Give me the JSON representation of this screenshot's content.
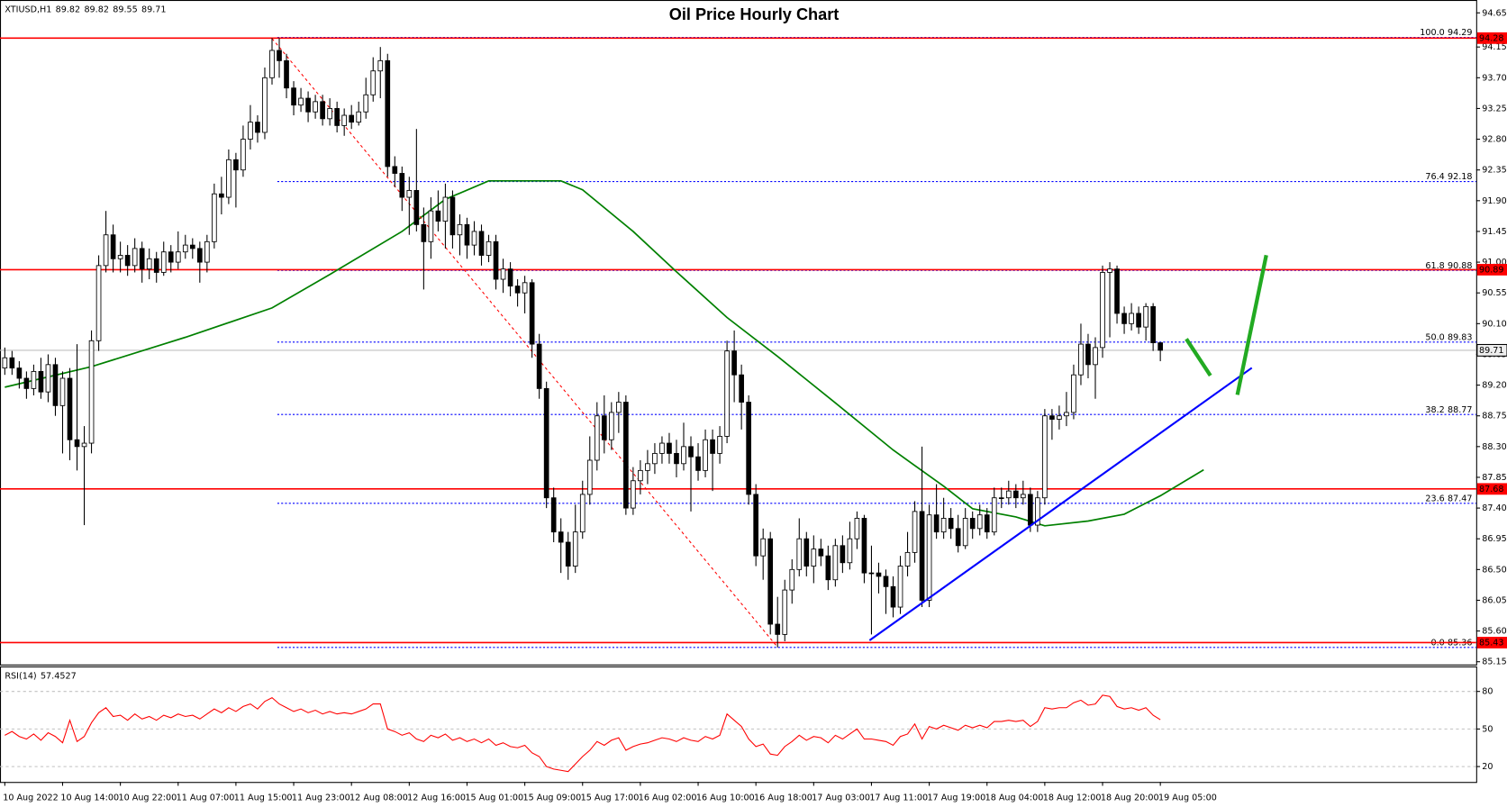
{
  "chart_data": {
    "type": "candlestick",
    "title": "Oil Price Hourly Chart",
    "symbol": "XTIUSD,H1",
    "up_color": "#ffffff",
    "down_color": "#000000",
    "open": [
      89.45,
      89.6,
      89.45,
      89.3,
      89.15,
      89.4,
      89.1,
      89.5,
      88.9,
      89.3,
      88.4,
      88.3,
      88.35,
      89.85,
      90.95,
      91.4,
      91.05,
      91.1,
      90.95,
      91.2,
      90.9,
      91.05,
      90.85,
      91.15,
      91.0,
      91.15,
      91.25,
      91.2,
      91.0,
      91.3,
      92.0,
      91.95,
      92.5,
      92.35,
      92.8,
      93.05,
      92.9,
      93.7,
      94.1,
      93.95,
      93.55,
      93.3,
      93.4,
      93.2,
      93.35,
      93.1,
      93.25,
      93.0,
      93.15,
      93.05,
      93.2,
      93.45,
      93.8,
      93.95,
      92.4,
      92.3,
      91.95,
      92.05,
      91.55,
      91.3,
      91.75,
      91.6,
      91.95,
      91.4,
      91.55,
      91.25,
      91.45,
      91.1,
      91.3,
      90.75,
      90.9,
      90.65,
      90.55,
      90.7,
      89.8,
      89.15,
      87.55,
      87.05,
      86.9,
      86.55,
      87.05,
      87.6,
      88.1,
      88.75,
      88.4,
      88.8,
      88.95,
      87.4,
      87.8,
      87.95,
      88.05,
      88.2,
      88.35,
      88.2,
      88.05,
      88.3,
      88.15,
      87.95,
      88.4,
      88.2,
      88.45,
      89.7,
      89.35,
      88.95,
      87.6,
      86.7,
      86.95,
      85.7,
      85.55,
      86.2,
      86.5,
      86.95,
      86.55,
      86.8,
      86.7,
      86.35,
      86.85,
      86.6,
      86.95,
      87.25,
      86.45,
      86.45,
      86.4,
      86.25,
      85.95,
      86.55,
      86.75,
      87.35,
      86.05,
      87.3,
      87.05,
      87.25,
      87.1,
      86.85,
      87.25,
      87.1,
      87.3,
      87.05,
      87.55,
      87.55,
      87.65,
      87.55,
      87.6,
      87.15,
      87.55,
      88.75,
      88.7,
      88.75,
      88.8,
      89.35,
      89.8,
      89.5,
      89.75,
      90.85,
      90.9,
      90.25,
      90.1,
      90.25,
      90.05,
      90.35,
      89.82
    ],
    "high": [
      89.75,
      89.7,
      89.55,
      89.4,
      89.5,
      89.6,
      89.65,
      89.6,
      89.4,
      89.45,
      89.8,
      88.6,
      90.0,
      91.1,
      91.75,
      91.55,
      91.3,
      91.25,
      91.35,
      91.3,
      91.2,
      91.15,
      91.3,
      91.25,
      91.45,
      91.4,
      91.35,
      91.3,
      91.4,
      92.15,
      92.25,
      92.65,
      92.6,
      93.0,
      93.3,
      93.15,
      93.85,
      94.28,
      94.28,
      94.05,
      93.65,
      93.55,
      93.5,
      93.45,
      93.45,
      93.4,
      93.35,
      93.25,
      93.3,
      93.35,
      93.7,
      94.0,
      94.15,
      94.05,
      92.55,
      92.4,
      92.25,
      92.95,
      91.8,
      91.95,
      92.05,
      92.15,
      92.05,
      91.7,
      91.65,
      91.6,
      91.55,
      91.4,
      91.4,
      91.05,
      91.0,
      90.75,
      90.8,
      90.75,
      89.95,
      89.25,
      87.7,
      87.25,
      87.05,
      87.45,
      87.8,
      88.45,
      88.95,
      89.05,
      88.95,
      89.1,
      89.05,
      88.0,
      88.1,
      88.25,
      88.35,
      88.45,
      88.5,
      88.4,
      88.65,
      88.45,
      88.35,
      88.55,
      88.55,
      88.6,
      89.85,
      90.0,
      89.5,
      89.05,
      87.75,
      87.1,
      87.05,
      86.1,
      86.35,
      86.65,
      87.25,
      87.05,
      87.0,
      86.95,
      86.85,
      86.95,
      87.0,
      87.2,
      87.35,
      87.3,
      86.85,
      86.6,
      86.5,
      86.4,
      86.7,
      87.05,
      87.5,
      88.3,
      87.45,
      87.75,
      87.55,
      87.4,
      87.3,
      87.4,
      87.35,
      87.45,
      87.4,
      87.7,
      87.7,
      87.8,
      87.75,
      87.8,
      87.7,
      87.65,
      88.85,
      88.85,
      88.9,
      89.1,
      89.5,
      90.1,
      89.95,
      89.9,
      90.95,
      91.0,
      90.95,
      90.35,
      90.4,
      90.35,
      90.4,
      90.4,
      89.82
    ],
    "low": [
      89.35,
      89.35,
      89.15,
      89.0,
      89.05,
      89.0,
      88.95,
      88.75,
      88.2,
      88.1,
      87.95,
      87.15,
      88.2,
      89.7,
      90.85,
      90.85,
      90.85,
      90.8,
      90.85,
      90.7,
      90.75,
      90.7,
      90.8,
      90.85,
      90.9,
      91.05,
      91.05,
      90.7,
      90.85,
      91.2,
      91.7,
      91.85,
      91.8,
      92.25,
      92.65,
      92.75,
      92.8,
      93.6,
      93.7,
      93.4,
      93.15,
      93.2,
      93.05,
      93.1,
      93.0,
      93.0,
      92.9,
      92.85,
      92.95,
      93.0,
      93.1,
      93.35,
      93.4,
      92.25,
      92.1,
      91.75,
      91.4,
      91.45,
      90.6,
      91.05,
      91.45,
      91.2,
      91.2,
      91.1,
      91.05,
      91.1,
      90.95,
      91.0,
      90.6,
      90.55,
      90.5,
      90.35,
      90.25,
      89.6,
      89.0,
      87.4,
      86.9,
      86.45,
      86.35,
      86.45,
      86.95,
      87.45,
      87.95,
      88.2,
      88.25,
      88.5,
      87.3,
      87.3,
      87.6,
      87.75,
      87.9,
      88.05,
      88.05,
      87.85,
      87.95,
      87.35,
      87.8,
      87.85,
      87.65,
      88.05,
      88.35,
      88.95,
      88.55,
      87.45,
      86.55,
      86.35,
      85.55,
      85.36,
      85.45,
      86.0,
      86.4,
      86.4,
      86.3,
      86.55,
      86.2,
      86.25,
      86.45,
      86.5,
      86.8,
      86.3,
      85.55,
      86.15,
      85.85,
      85.8,
      85.85,
      86.4,
      86.6,
      85.95,
      85.95,
      86.95,
      86.95,
      86.95,
      86.75,
      86.8,
      86.95,
      87.0,
      86.95,
      87.0,
      87.4,
      87.45,
      87.4,
      87.45,
      87.05,
      87.05,
      87.45,
      88.4,
      88.55,
      88.6,
      88.7,
      89.2,
      89.3,
      89.0,
      89.6,
      89.9,
      90.1,
      89.95,
      90.0,
      89.95,
      89.85,
      89.7,
      89.55
    ],
    "close": [
      89.6,
      89.45,
      89.3,
      89.15,
      89.4,
      89.1,
      89.5,
      88.9,
      89.3,
      88.4,
      88.3,
      88.35,
      89.85,
      90.95,
      91.4,
      91.05,
      91.1,
      90.95,
      91.2,
      90.9,
      91.05,
      90.85,
      91.15,
      91.0,
      91.15,
      91.25,
      91.2,
      91.0,
      91.3,
      92.0,
      91.95,
      92.5,
      92.35,
      92.8,
      93.05,
      92.9,
      93.7,
      94.1,
      93.95,
      93.55,
      93.3,
      93.4,
      93.2,
      93.35,
      93.1,
      93.25,
      93.0,
      93.15,
      93.05,
      93.2,
      93.45,
      93.8,
      93.95,
      92.4,
      92.3,
      91.95,
      92.05,
      91.55,
      91.3,
      91.75,
      91.6,
      91.95,
      91.4,
      91.55,
      91.25,
      91.45,
      91.1,
      91.3,
      90.75,
      90.9,
      90.65,
      90.55,
      90.7,
      89.8,
      89.15,
      87.55,
      87.05,
      86.9,
      86.55,
      87.05,
      87.6,
      88.1,
      88.75,
      88.4,
      88.8,
      88.95,
      87.4,
      87.8,
      87.95,
      88.05,
      88.2,
      88.35,
      88.2,
      88.05,
      88.3,
      88.15,
      87.95,
      88.4,
      88.2,
      88.45,
      89.7,
      89.35,
      88.95,
      87.6,
      86.7,
      86.95,
      85.7,
      85.55,
      86.2,
      86.5,
      86.95,
      86.55,
      86.8,
      86.7,
      86.35,
      86.85,
      86.6,
      86.95,
      87.25,
      86.45,
      86.45,
      86.4,
      86.25,
      85.95,
      86.55,
      86.75,
      87.35,
      86.05,
      87.3,
      87.05,
      87.25,
      87.1,
      86.85,
      87.25,
      87.1,
      87.3,
      87.05,
      87.55,
      87.55,
      87.65,
      87.55,
      87.6,
      87.15,
      87.55,
      88.75,
      88.7,
      88.75,
      88.8,
      89.35,
      89.8,
      89.5,
      89.75,
      90.85,
      90.9,
      90.25,
      90.1,
      90.25,
      90.05,
      90.35,
      89.82,
      89.71
    ],
    "xlim": [
      -0.6667,
      203.7333
    ],
    "xticks": [
      {
        "value": 0,
        "label": "10 Aug 2022"
      },
      {
        "value": 8,
        "label": "10 Aug 14:00"
      },
      {
        "value": 16,
        "label": "10 Aug 22:00"
      },
      {
        "value": 24,
        "label": "11 Aug 07:00"
      },
      {
        "value": 32,
        "label": "11 Aug 15:00"
      },
      {
        "value": 40,
        "label": "11 Aug 23:00"
      },
      {
        "value": 48,
        "label": "12 Aug 08:00"
      },
      {
        "value": 56,
        "label": "12 Aug 16:00"
      },
      {
        "value": 64,
        "label": "15 Aug 01:00"
      },
      {
        "value": 72,
        "label": "15 Aug 09:00"
      },
      {
        "value": 80,
        "label": "15 Aug 17:00"
      },
      {
        "value": 88,
        "label": "16 Aug 02:00"
      },
      {
        "value": 96,
        "label": "16 Aug 10:00"
      },
      {
        "value": 104,
        "label": "16 Aug 18:00"
      },
      {
        "value": 112,
        "label": "17 Aug 03:00"
      },
      {
        "value": 120,
        "label": "17 Aug 11:00"
      },
      {
        "value": 128,
        "label": "17 Aug 19:00"
      },
      {
        "value": 136,
        "label": "18 Aug 04:00"
      },
      {
        "value": 144,
        "label": "18 Aug 12:00"
      },
      {
        "value": 152,
        "label": "18 Aug 20:00"
      },
      {
        "value": 160,
        "label": "19 Aug 05:00"
      }
    ],
    "ylim": [
      85.11,
      94.81
    ],
    "yticks": [
      94.65,
      94.15,
      {
        "value": 93.7,
        "label": "93.70"
      },
      93.25,
      {
        "value": 92.8,
        "label": "92.80"
      },
      92.35,
      {
        "value": 91.9,
        "label": "91.90"
      },
      91.45,
      {
        "value": 91,
        "label": "91.00"
      },
      90.55,
      {
        "value": 90.1,
        "label": "90.10"
      },
      89.65,
      {
        "value": 89.2,
        "label": "89.20"
      },
      88.75,
      {
        "value": 88.3,
        "label": "88.30"
      },
      87.85,
      {
        "value": 87.4,
        "label": "87.40"
      },
      86.95,
      {
        "value": 86.5,
        "label": "86.50"
      },
      86.05,
      {
        "value": 85.6,
        "label": "85.60"
      },
      85.15
    ],
    "levels": {
      "color": "#ff0000",
      "values": [
        94.28,
        90.89,
        87.68,
        85.43
      ]
    },
    "fib": {
      "color": "#0000ff",
      "levels": [
        {
          "ratio": "100.0",
          "price": 94.29
        },
        {
          "ratio": "76.4",
          "price": 92.18
        },
        {
          "ratio": "61.8",
          "price": 90.88
        },
        {
          "ratio": "50.0",
          "price": 89.83
        },
        {
          "ratio": "38.2",
          "price": 88.77
        },
        {
          "ratio": "23.6",
          "price": 87.47
        },
        {
          "ratio": "0.0",
          "price": 85.36
        }
      ]
    },
    "ma": {
      "color": "#008000",
      "x": [
        0,
        12,
        25,
        37,
        45,
        55,
        61,
        67,
        77,
        80,
        87,
        93,
        100,
        107,
        115,
        123,
        130,
        134,
        140,
        144,
        150,
        155,
        160,
        166
      ],
      "values": [
        89.17,
        89.47,
        89.9,
        90.33,
        90.82,
        91.45,
        91.92,
        92.19,
        92.19,
        92.06,
        91.45,
        90.86,
        90.19,
        89.62,
        88.94,
        88.25,
        87.72,
        87.39,
        87.27,
        87.14,
        87.21,
        87.31,
        87.58,
        87.96
      ]
    },
    "rsi": {
      "label": "RSI(14)",
      "color": "#ff0000",
      "ylim": [
        7.7,
        100
      ],
      "yticks": [
        80,
        50,
        20
      ],
      "values": [
        45,
        48,
        44,
        42,
        46,
        41,
        47,
        44,
        39,
        57,
        40,
        44,
        55,
        63,
        67,
        60,
        61,
        57,
        62,
        58,
        60,
        57,
        61,
        59,
        62,
        60,
        61,
        58,
        62,
        66,
        63,
        67,
        64,
        68,
        70,
        66,
        72,
        75,
        70,
        67,
        64,
        66,
        63,
        65,
        62,
        64,
        62,
        63,
        62,
        64,
        66,
        70,
        70,
        50,
        48,
        45,
        47,
        42,
        40,
        45,
        43,
        46,
        41,
        43,
        40,
        42,
        39,
        42,
        37,
        39,
        36,
        35,
        37,
        31,
        28,
        20,
        18,
        17,
        16,
        22,
        28,
        33,
        40,
        37,
        41,
        43,
        33,
        36,
        38,
        39,
        41,
        43,
        42,
        40,
        43,
        41,
        40,
        44,
        42,
        45,
        62,
        57,
        52,
        42,
        36,
        38,
        30,
        29,
        36,
        40,
        45,
        41,
        44,
        43,
        39,
        45,
        42,
        46,
        50,
        42,
        42,
        41,
        40,
        37,
        44,
        46,
        54,
        42,
        52,
        50,
        53,
        51,
        49,
        53,
        51,
        53,
        51,
        56,
        56,
        57,
        56,
        57,
        52,
        56,
        67,
        66,
        67,
        67,
        71,
        73,
        69,
        70,
        77,
        76,
        68,
        66,
        67,
        65,
        67,
        61,
        57.4527
      ]
    }
  }
}
